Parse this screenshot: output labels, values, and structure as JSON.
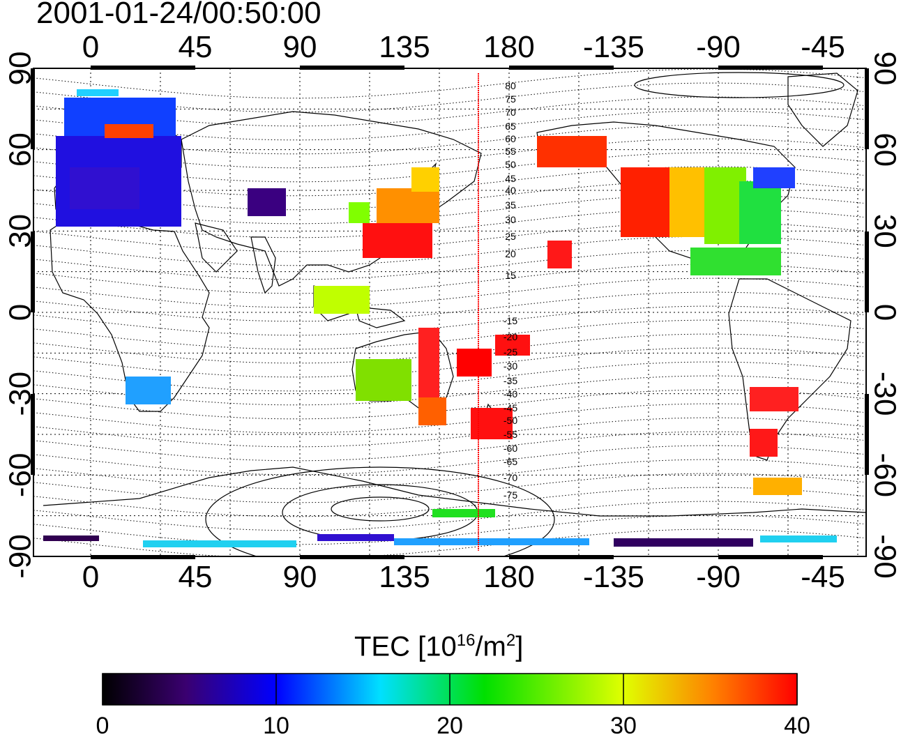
{
  "title": "2001-01-24/00:50:00",
  "colorbar": {
    "label_prefix": "TEC  [10",
    "label_exp1": "16",
    "label_mid": "/m",
    "label_exp2": "2",
    "label_suffix": "]",
    "ticks": [
      "0",
      "10",
      "20",
      "30",
      "40"
    ],
    "min": 0,
    "max": 40,
    "colors": [
      "#000000",
      "#3a0070",
      "#0000ff",
      "#00e0ff",
      "#00e000",
      "#e0ff00",
      "#ff8000",
      "#ff0000"
    ]
  },
  "map": {
    "lon_ticks_top": [
      "0",
      "45",
      "90",
      "135",
      "180",
      "-135",
      "-90",
      "-45"
    ],
    "lon_ticks_bottom": [
      "0",
      "45",
      "90",
      "135",
      "180",
      "-135",
      "-90",
      "-45"
    ],
    "lat_ticks_left": [
      "90",
      "60",
      "30",
      "0",
      "-30",
      "-60",
      "-90"
    ],
    "lat_ticks_right": [
      "90",
      "60",
      "30",
      "0",
      "-30",
      "-60",
      "-90"
    ],
    "contour_labels": [
      "80",
      "75",
      "70",
      "65",
      "60",
      "55",
      "50",
      "45",
      "40",
      "35",
      "30",
      "25",
      "20",
      "15",
      "-15",
      "-20",
      "-25",
      "-30",
      "-35",
      "-40",
      "-45",
      "-50",
      "-55",
      "-60",
      "-65",
      "-70",
      "-75"
    ],
    "line_color": "#ff0000"
  }
}
